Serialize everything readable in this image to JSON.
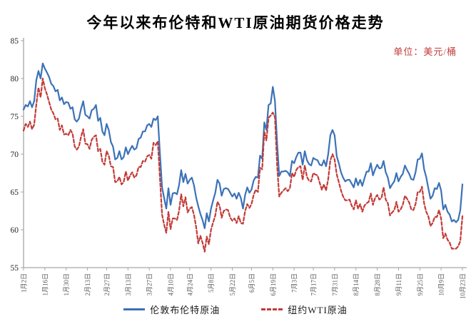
{
  "title": "今年以来布伦特和WTI原油期货价格走势",
  "unit_label": "单位：美元/桶",
  "colors": {
    "brent_blue": "#3c72b8",
    "wti_red": "#c23b38",
    "axis_grey": "#a6a6a6",
    "y_label_color": "#262626",
    "x_label_color": "#595959"
  },
  "legend": [
    {
      "label": "伦敦布伦特原油",
      "color": "#3c72b8",
      "style": "solid"
    },
    {
      "label": "纽约WTI原油",
      "color": "#c23b38",
      "style": "dashed"
    }
  ],
  "chart_data": {
    "type": "line",
    "title": "今年以来布伦特和WTI原油期货价格走势",
    "xlabel": "",
    "ylabel": "美元/桶",
    "ylim": [
      55,
      85
    ],
    "yticks": [
      55,
      60,
      65,
      70,
      75,
      80,
      85
    ],
    "grid": false,
    "legend_position": "bottom",
    "x_tick_labels": [
      "1月2日",
      "1月16日",
      "1月30日",
      "2月13日",
      "2月27日",
      "3月13日",
      "3月27日",
      "4月10日",
      "4月24日",
      "5月8日",
      "5月22日",
      "6月5日",
      "6月19日",
      "7月3日",
      "7月17日",
      "7月31日",
      "8月14日",
      "8月28日",
      "9月11日",
      "9月25日",
      "10月9日",
      "10月23日"
    ],
    "x_tick_indices": [
      0,
      10,
      20,
      30,
      39,
      49,
      59,
      69,
      78,
      88,
      98,
      107,
      117,
      127,
      136,
      146,
      156,
      166,
      176,
      186,
      196,
      206
    ],
    "series": [
      {
        "name": "伦敦布伦特原油",
        "color": "#3c72b8",
        "dash": "solid",
        "values": [
          75.9,
          76.5,
          76.3,
          77.0,
          76.2,
          77.0,
          79.8,
          81.0,
          80.0,
          82.0,
          81.3,
          80.8,
          80.2,
          79.3,
          79.0,
          78.3,
          78.5,
          77.1,
          77.5,
          76.6,
          76.9,
          76.8,
          76.0,
          76.2,
          74.6,
          74.3,
          74.7,
          76.0,
          77.0,
          75.2,
          75.0,
          74.7,
          75.8,
          76.0,
          76.5,
          74.4,
          74.8,
          73.0,
          72.5,
          74.0,
          73.2,
          71.6,
          71.0,
          69.3,
          69.5,
          70.4,
          69.3,
          69.6,
          70.9,
          70.0,
          70.6,
          71.1,
          70.6,
          70.8,
          72.0,
          72.2,
          73.0,
          73.0,
          73.8,
          74.0,
          73.6,
          74.7,
          74.5,
          75.0,
          70.1,
          65.6,
          64.2,
          62.8,
          65.5,
          63.3,
          64.8,
          64.9,
          64.7,
          65.9,
          67.9,
          66.3,
          67.4,
          66.1,
          66.6,
          66.9,
          65.9,
          64.3,
          63.1,
          62.1,
          61.3,
          60.2,
          62.2,
          61.1,
          62.8,
          63.9,
          64.9,
          66.6,
          66.1,
          64.5,
          65.4,
          65.5,
          65.4,
          64.9,
          64.4,
          64.8,
          64.1,
          64.9,
          64.2,
          62.8,
          64.6,
          65.6,
          64.9,
          65.3,
          66.5,
          67.0,
          66.9,
          69.8,
          69.4,
          74.2,
          73.2,
          76.5,
          76.7,
          78.9,
          77.0,
          71.5,
          67.1,
          67.7,
          67.7,
          67.8,
          67.6,
          67.1,
          69.1,
          68.8,
          69.6,
          70.2,
          70.2,
          68.6,
          70.4,
          69.2,
          68.7,
          68.5,
          69.5,
          69.3,
          69.2,
          68.6,
          68.5,
          69.2,
          68.4,
          70.0,
          72.5,
          73.2,
          72.5,
          69.7,
          68.8,
          67.6,
          66.9,
          66.4,
          66.6,
          66.6,
          66.1,
          65.6,
          66.8,
          65.9,
          66.6,
          65.8,
          66.8,
          67.7,
          67.7,
          68.8,
          67.2,
          68.0,
          68.6,
          68.1,
          68.2,
          69.1,
          67.6,
          66.9,
          65.5,
          66.0,
          66.4,
          67.5,
          66.4,
          67.0,
          67.4,
          68.5,
          67.9,
          67.4,
          66.7,
          66.6,
          67.6,
          69.3,
          69.4,
          70.1,
          68.0,
          67.0,
          65.5,
          64.1,
          64.5,
          65.5,
          65.4,
          66.2,
          65.2,
          62.7,
          63.3,
          62.4,
          62.0,
          61.1,
          61.3,
          61.0,
          61.3,
          62.6,
          66.0
        ]
      },
      {
        "name": "纽约WTI原油",
        "color": "#c23b38",
        "dash": "dashed",
        "values": [
          73.1,
          74.0,
          73.6,
          74.3,
          73.3,
          73.9,
          76.6,
          78.8,
          77.5,
          80.0,
          78.7,
          77.9,
          76.9,
          75.9,
          75.4,
          74.6,
          74.7,
          73.2,
          73.8,
          72.6,
          72.7,
          72.5,
          73.2,
          72.7,
          71.0,
          70.6,
          71.0,
          72.3,
          73.3,
          71.4,
          71.3,
          70.7,
          71.9,
          72.3,
          72.5,
          70.4,
          70.7,
          69.0,
          68.6,
          70.4,
          69.8,
          68.4,
          68.3,
          66.3,
          66.4,
          67.0,
          66.0,
          66.3,
          67.7,
          66.5,
          67.2,
          67.6,
          66.9,
          67.2,
          68.3,
          68.3,
          69.1,
          69.0,
          69.7,
          69.9,
          69.4,
          71.5,
          71.2,
          71.7,
          66.9,
          62.0,
          60.7,
          59.6,
          62.4,
          60.1,
          61.5,
          61.5,
          61.3,
          62.5,
          64.7,
          63.1,
          64.3,
          62.3,
          62.8,
          63.0,
          62.0,
          60.4,
          58.2,
          59.2,
          58.3,
          57.1,
          59.1,
          58.1,
          60.0,
          61.0,
          61.9,
          63.7,
          63.2,
          61.6,
          62.5,
          62.7,
          62.6,
          61.6,
          61.2,
          61.5,
          60.9,
          61.8,
          60.9,
          60.8,
          62.5,
          63.4,
          62.9,
          63.4,
          64.6,
          65.3,
          65.0,
          68.2,
          68.0,
          73.0,
          71.8,
          74.8,
          75.1,
          75.5,
          74.9,
          68.5,
          64.4,
          64.9,
          65.2,
          65.5,
          65.1,
          65.5,
          67.5,
          67.0,
          67.9,
          68.3,
          68.4,
          66.6,
          68.5,
          67.0,
          66.5,
          66.4,
          67.5,
          67.3,
          67.2,
          66.2,
          65.3,
          66.0,
          65.2,
          66.7,
          69.2,
          70.0,
          69.3,
          67.3,
          66.3,
          65.2,
          64.4,
          63.9,
          63.9,
          64.0,
          63.2,
          62.7,
          63.9,
          62.8,
          63.4,
          62.4,
          63.2,
          63.5,
          63.7,
          64.8,
          63.3,
          64.2,
          64.6,
          64.0,
          64.2,
          65.6,
          64.0,
          63.5,
          61.9,
          62.3,
          62.6,
          63.7,
          62.4,
          62.7,
          63.3,
          64.5,
          64.1,
          63.6,
          62.7,
          62.6,
          63.4,
          65.0,
          65.0,
          65.7,
          63.5,
          62.4,
          61.8,
          60.5,
          60.9,
          61.7,
          61.7,
          62.6,
          61.5,
          58.9,
          59.5,
          58.7,
          58.3,
          57.5,
          57.5,
          57.5,
          57.8,
          58.5,
          61.8
        ]
      }
    ]
  }
}
